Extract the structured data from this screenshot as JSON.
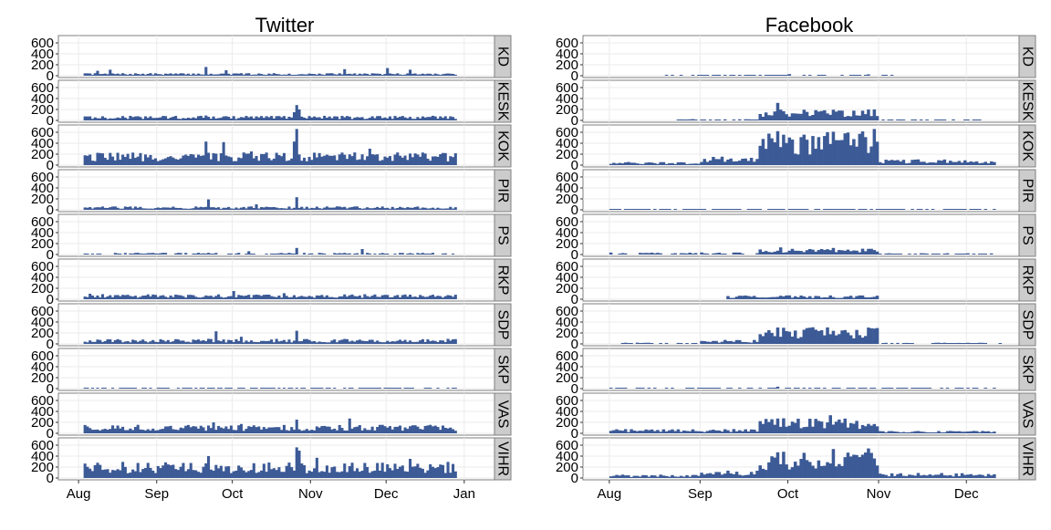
{
  "chart_data": [
    {
      "type": "bar",
      "title": "Twitter",
      "x_ticks": [
        "Aug",
        "Sep",
        "Oct",
        "Nov",
        "Dec",
        "Jan"
      ],
      "y_ticks": [
        0,
        200,
        400,
        600
      ],
      "ylim": [
        0,
        700
      ],
      "bar_color": "#3C5A96",
      "panels": [
        {
          "name": "KD",
          "segments": [
            {
              "from": "2015-08-03",
              "to": "2015-12-28",
              "base": 30,
              "spikes": [
                {
                  "date": "2015-08-08",
                  "value": 90
                },
                {
                  "date": "2015-08-13",
                  "value": 110
                },
                {
                  "date": "2015-09-20",
                  "value": 160
                },
                {
                  "date": "2015-09-28",
                  "value": 100
                },
                {
                  "date": "2015-11-14",
                  "value": 120
                },
                {
                  "date": "2015-12-01",
                  "value": 140
                },
                {
                  "date": "2015-12-10",
                  "value": 110
                }
              ]
            }
          ]
        },
        {
          "name": "KESK",
          "segments": [
            {
              "from": "2015-08-03",
              "to": "2015-12-28",
              "base": 55,
              "spikes": [
                {
                  "date": "2015-08-18",
                  "value": 80
                },
                {
                  "date": "2015-09-20",
                  "value": 90
                },
                {
                  "date": "2015-10-26",
                  "value": 280
                },
                {
                  "date": "2015-10-27",
                  "value": 200
                },
                {
                  "date": "2015-10-25",
                  "value": 150
                }
              ]
            }
          ]
        },
        {
          "name": "KOK",
          "segments": [
            {
              "from": "2015-08-03",
              "to": "2015-12-28",
              "base": 150,
              "spikes": [
                {
                  "date": "2015-09-20",
                  "value": 430
                },
                {
                  "date": "2015-09-27",
                  "value": 420
                },
                {
                  "date": "2015-10-08",
                  "value": 250
                },
                {
                  "date": "2015-10-26",
                  "value": 660
                },
                {
                  "date": "2015-10-25",
                  "value": 430
                },
                {
                  "date": "2015-11-24",
                  "value": 300
                }
              ]
            }
          ]
        },
        {
          "name": "PIR",
          "segments": [
            {
              "from": "2015-08-03",
              "to": "2015-12-28",
              "base": 40,
              "spikes": [
                {
                  "date": "2015-09-21",
                  "value": 190
                },
                {
                  "date": "2015-10-26",
                  "value": 230
                },
                {
                  "date": "2015-10-10",
                  "value": 100
                }
              ]
            }
          ]
        },
        {
          "name": "PS",
          "segments": [
            {
              "from": "2015-08-03",
              "to": "2015-12-28",
              "base": 20,
              "spikes": [
                {
                  "date": "2015-10-26",
                  "value": 120
                },
                {
                  "date": "2015-11-21",
                  "value": 100
                },
                {
                  "date": "2015-10-07",
                  "value": 60
                }
              ]
            }
          ]
        },
        {
          "name": "RKP",
          "segments": [
            {
              "from": "2015-08-03",
              "to": "2015-12-28",
              "base": 60,
              "spikes": [
                {
                  "date": "2015-08-05",
                  "value": 100
                },
                {
                  "date": "2015-10-01",
                  "value": 150
                },
                {
                  "date": "2015-10-21",
                  "value": 110
                }
              ]
            }
          ]
        },
        {
          "name": "SDP",
          "segments": [
            {
              "from": "2015-08-03",
              "to": "2015-12-28",
              "base": 60,
              "spikes": [
                {
                  "date": "2015-09-24",
                  "value": 230
                },
                {
                  "date": "2015-10-26",
                  "value": 240
                },
                {
                  "date": "2015-10-04",
                  "value": 130
                }
              ]
            }
          ]
        },
        {
          "name": "SKP",
          "segments": [
            {
              "from": "2015-08-03",
              "to": "2015-12-28",
              "base": 8,
              "spikes": []
            }
          ]
        },
        {
          "name": "VAS",
          "segments": [
            {
              "from": "2015-08-03",
              "to": "2015-12-28",
              "base": 100,
              "spikes": [
                {
                  "date": "2015-09-23",
                  "value": 200
                },
                {
                  "date": "2015-10-26",
                  "value": 250
                },
                {
                  "date": "2015-11-16",
                  "value": 270
                },
                {
                  "date": "2015-10-04",
                  "value": 170
                }
              ]
            }
          ]
        },
        {
          "name": "VIHR",
          "segments": [
            {
              "from": "2015-08-03",
              "to": "2015-12-28",
              "base": 190,
              "spikes": [
                {
                  "date": "2015-09-21",
                  "value": 400
                },
                {
                  "date": "2015-10-26",
                  "value": 560
                },
                {
                  "date": "2015-10-27",
                  "value": 500
                },
                {
                  "date": "2015-11-03",
                  "value": 370
                },
                {
                  "date": "2015-12-10",
                  "value": 350
                }
              ]
            }
          ]
        }
      ]
    },
    {
      "type": "bar",
      "title": "Facebook",
      "x_ticks": [
        "Aug",
        "Sep",
        "Oct",
        "Nov",
        "Dec"
      ],
      "y_ticks": [
        0,
        200,
        400,
        600
      ],
      "ylim": [
        0,
        700
      ],
      "bar_color": "#3C5A96",
      "panels": [
        {
          "name": "KD",
          "segments": [
            {
              "from": "2015-08-20",
              "to": "2015-11-05",
              "base": 12,
              "spikes": [
                {
                  "date": "2015-10-01",
                  "value": 30
                },
                {
                  "date": "2015-10-28",
                  "value": 25
                }
              ]
            }
          ]
        },
        {
          "name": "KESK",
          "segments": [
            {
              "from": "2015-08-24",
              "to": "2015-09-20",
              "base": 15,
              "spikes": []
            },
            {
              "from": "2015-09-21",
              "to": "2015-10-31",
              "base": 130,
              "spikes": [
                {
                  "date": "2015-09-27",
                  "value": 320
                },
                {
                  "date": "2015-10-30",
                  "value": 200
                }
              ]
            },
            {
              "from": "2015-11-01",
              "to": "2015-12-05",
              "base": 12,
              "spikes": []
            }
          ]
        },
        {
          "name": "KOK",
          "segments": [
            {
              "from": "2015-08-01",
              "to": "2015-08-31",
              "base": 40,
              "spikes": []
            },
            {
              "from": "2015-09-01",
              "to": "2015-09-20",
              "base": 100,
              "spikes": []
            },
            {
              "from": "2015-09-21",
              "to": "2015-10-31",
              "base": 400,
              "spikes": [
                {
                  "date": "2015-09-27",
                  "value": 620
                },
                {
                  "date": "2015-10-16",
                  "value": 610
                },
                {
                  "date": "2015-10-30",
                  "value": 660
                },
                {
                  "date": "2015-10-20",
                  "value": 580
                }
              ]
            },
            {
              "from": "2015-11-01",
              "to": "2015-12-10",
              "base": 70,
              "spikes": []
            }
          ]
        },
        {
          "name": "PIR",
          "segments": [
            {
              "from": "2015-08-01",
              "to": "2015-12-10",
              "base": 8,
              "spikes": []
            }
          ]
        },
        {
          "name": "PS",
          "segments": [
            {
              "from": "2015-08-01",
              "to": "2015-09-20",
              "base": 25,
              "spikes": []
            },
            {
              "from": "2015-09-21",
              "to": "2015-10-31",
              "base": 70,
              "spikes": [
                {
                  "date": "2015-09-28",
                  "value": 130
                },
                {
                  "date": "2015-10-16",
                  "value": 120
                }
              ]
            },
            {
              "from": "2015-11-01",
              "to": "2015-12-10",
              "base": 15,
              "spikes": []
            }
          ]
        },
        {
          "name": "RKP",
          "segments": [
            {
              "from": "2015-09-10",
              "to": "2015-10-31",
              "base": 45,
              "spikes": [
                {
                  "date": "2015-10-01",
                  "value": 70
                }
              ]
            }
          ]
        },
        {
          "name": "SDP",
          "segments": [
            {
              "from": "2015-08-05",
              "to": "2015-08-31",
              "base": 15,
              "spikes": []
            },
            {
              "from": "2015-09-01",
              "to": "2015-09-20",
              "base": 50,
              "spikes": []
            },
            {
              "from": "2015-09-21",
              "to": "2015-10-31",
              "base": 200,
              "spikes": [
                {
                  "date": "2015-09-27",
                  "value": 300
                },
                {
                  "date": "2015-10-30",
                  "value": 280
                }
              ]
            },
            {
              "from": "2015-11-01",
              "to": "2015-12-15",
              "base": 15,
              "spikes": []
            }
          ]
        },
        {
          "name": "SKP",
          "segments": [
            {
              "from": "2015-08-01",
              "to": "2015-12-10",
              "base": 10,
              "spikes": [
                {
                  "date": "2015-09-27",
                  "value": 35
                }
              ]
            }
          ]
        },
        {
          "name": "VAS",
          "segments": [
            {
              "from": "2015-08-01",
              "to": "2015-09-20",
              "base": 50,
              "spikes": []
            },
            {
              "from": "2015-09-21",
              "to": "2015-10-31",
              "base": 180,
              "spikes": [
                {
                  "date": "2015-09-27",
                  "value": 270
                },
                {
                  "date": "2015-10-15",
                  "value": 330
                }
              ]
            },
            {
              "from": "2015-11-01",
              "to": "2015-12-10",
              "base": 30,
              "spikes": []
            }
          ]
        },
        {
          "name": "VIHR",
          "segments": [
            {
              "from": "2015-08-01",
              "to": "2015-08-31",
              "base": 40,
              "spikes": []
            },
            {
              "from": "2015-09-01",
              "to": "2015-09-20",
              "base": 90,
              "spikes": []
            },
            {
              "from": "2015-09-21",
              "to": "2015-10-31",
              "base": 310,
              "spikes": [
                {
                  "date": "2015-09-27",
                  "value": 470
                },
                {
                  "date": "2015-10-16",
                  "value": 530
                },
                {
                  "date": "2015-10-28",
                  "value": 540
                },
                {
                  "date": "2015-10-06",
                  "value": 460
                }
              ]
            },
            {
              "from": "2015-11-01",
              "to": "2015-12-10",
              "base": 60,
              "spikes": []
            }
          ]
        }
      ]
    }
  ]
}
